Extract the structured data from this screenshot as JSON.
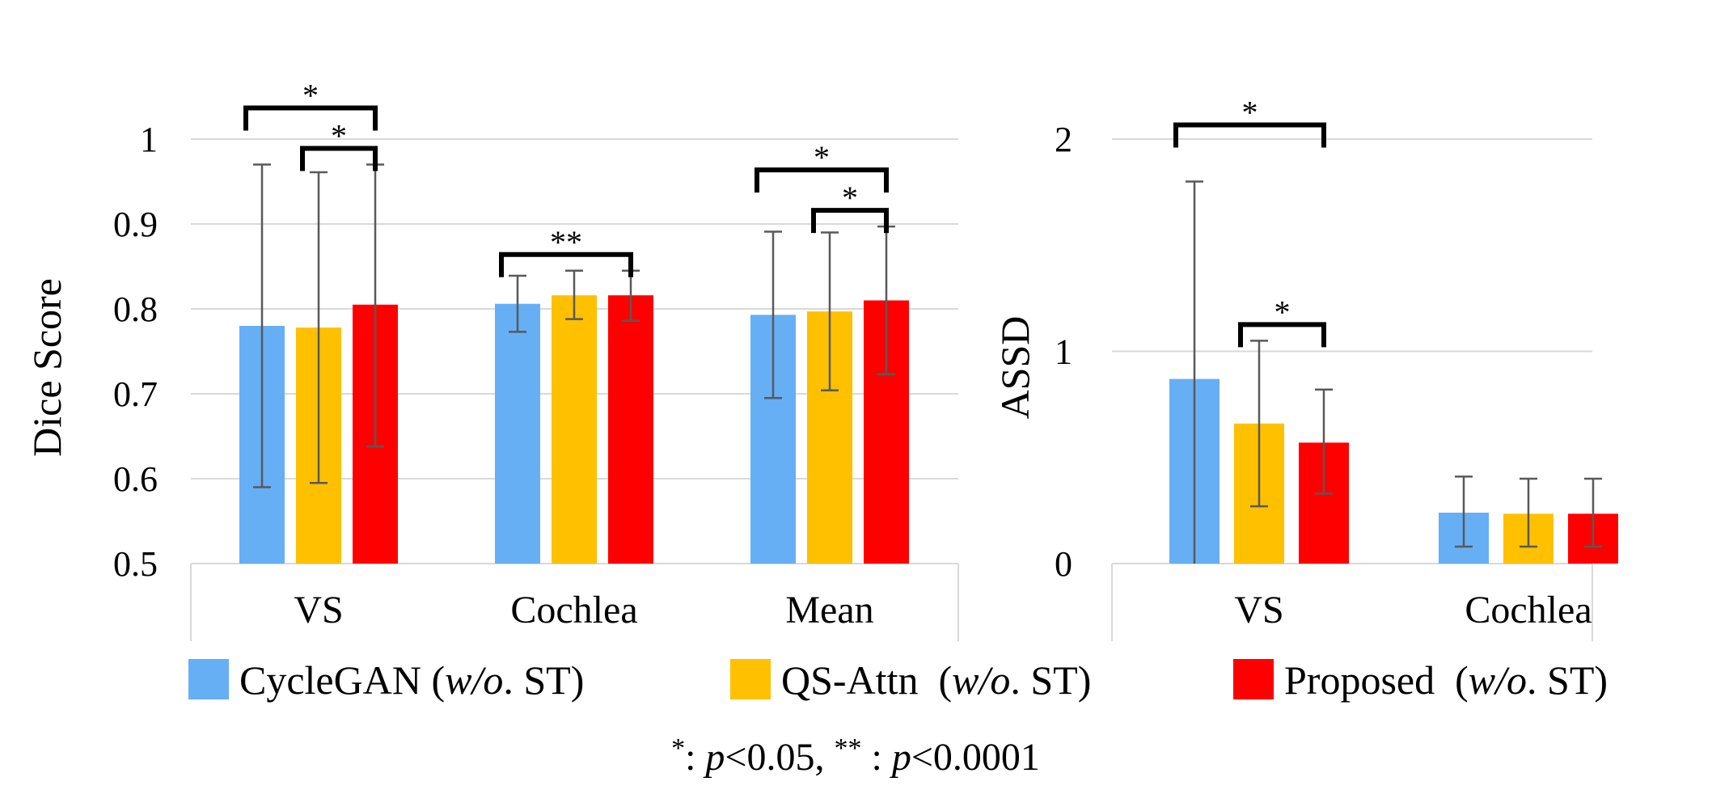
{
  "colors": {
    "cyclegan": "#66AFF5",
    "qsattn": "#FFC000",
    "proposed": "#FF0000",
    "grid": "#D9D9D9",
    "errorbar": "#595959",
    "bracket": "#000000"
  },
  "legend": [
    {
      "key": "cyclegan",
      "name": "CycleGAN",
      "suffix_open": " (",
      "italic": "w/o",
      "suffix_close": ". ST)"
    },
    {
      "key": "qsattn",
      "name": "QS-Attn",
      "suffix_open": "  (",
      "italic": "w/o",
      "suffix_close": ". ST)"
    },
    {
      "key": "proposed",
      "name": "Proposed",
      "suffix_open": "  (",
      "italic": "w/o",
      "suffix_close": ". ST)"
    }
  ],
  "footnote": {
    "star1": "*",
    "text1": ": ",
    "p1": "p",
    "val1": "<0.05, ",
    "star2": "**",
    "text2": " : ",
    "p2": "p",
    "val2": "<0.0001"
  },
  "chart_data": [
    {
      "type": "bar",
      "ylabel": "Dice Score",
      "ylim": [
        0.5,
        1.0
      ],
      "yticks": [
        0.5,
        0.6,
        0.7,
        0.8,
        0.9,
        1.0
      ],
      "ytick_labels": [
        "0.5",
        "0.6",
        "0.7",
        "0.8",
        "0.9",
        "1"
      ],
      "categories": [
        "VS",
        "Cochlea",
        "Mean"
      ],
      "series": [
        {
          "key": "cyclegan",
          "name": "CycleGAN (w/o. ST)",
          "values": [
            0.78,
            0.806,
            0.793
          ],
          "err_low": [
            0.59,
            0.773,
            0.695
          ],
          "err_high": [
            0.97,
            0.839,
            0.891
          ]
        },
        {
          "key": "qsattn",
          "name": "QS-Attn (w/o. ST)",
          "values": [
            0.778,
            0.816,
            0.797
          ],
          "err_low": [
            0.595,
            0.788,
            0.704
          ],
          "err_high": [
            0.961,
            0.845,
            0.89
          ]
        },
        {
          "key": "proposed",
          "name": "Proposed (w/o. ST)",
          "values": [
            0.805,
            0.816,
            0.81
          ],
          "err_low": [
            0.638,
            0.786,
            0.723
          ],
          "err_high": [
            0.97,
            0.845,
            0.897
          ]
        }
      ],
      "significance": [
        {
          "category": 0,
          "from": 0,
          "to": 2,
          "label": "*",
          "level": 2
        },
        {
          "category": 0,
          "from": 1,
          "to": 2,
          "label": "*",
          "level": 1
        },
        {
          "category": 1,
          "from": 0,
          "to": 2,
          "label": "**",
          "level": 1
        },
        {
          "category": 2,
          "from": 0,
          "to": 2,
          "label": "*",
          "level": 2
        },
        {
          "category": 2,
          "from": 1,
          "to": 2,
          "label": "*",
          "level": 1
        }
      ]
    },
    {
      "type": "bar",
      "ylabel": "ASSD",
      "ylim": [
        0,
        2
      ],
      "yticks": [
        0,
        1,
        2
      ],
      "ytick_labels": [
        "0",
        "1",
        "2"
      ],
      "categories": [
        "VS",
        "Cochlea"
      ],
      "series": [
        {
          "key": "cyclegan",
          "name": "CycleGAN (w/o. ST)",
          "values": [
            0.87,
            0.24
          ],
          "err_low": [
            0.0,
            0.08
          ],
          "err_high": [
            1.8,
            0.41
          ]
        },
        {
          "key": "qsattn",
          "name": "QS-Attn (w/o. ST)",
          "values": [
            0.66,
            0.235
          ],
          "err_low": [
            0.27,
            0.08
          ],
          "err_high": [
            1.05,
            0.4
          ]
        },
        {
          "key": "proposed",
          "name": "Proposed (w/o. ST)",
          "values": [
            0.57,
            0.235
          ],
          "err_low": [
            0.33,
            0.08
          ],
          "err_high": [
            0.82,
            0.4
          ]
        }
      ],
      "significance": [
        {
          "category": 0,
          "from": 0,
          "to": 2,
          "label": "*",
          "level": 2
        },
        {
          "category": 0,
          "from": 1,
          "to": 2,
          "label": "*",
          "level": 1
        }
      ]
    }
  ]
}
